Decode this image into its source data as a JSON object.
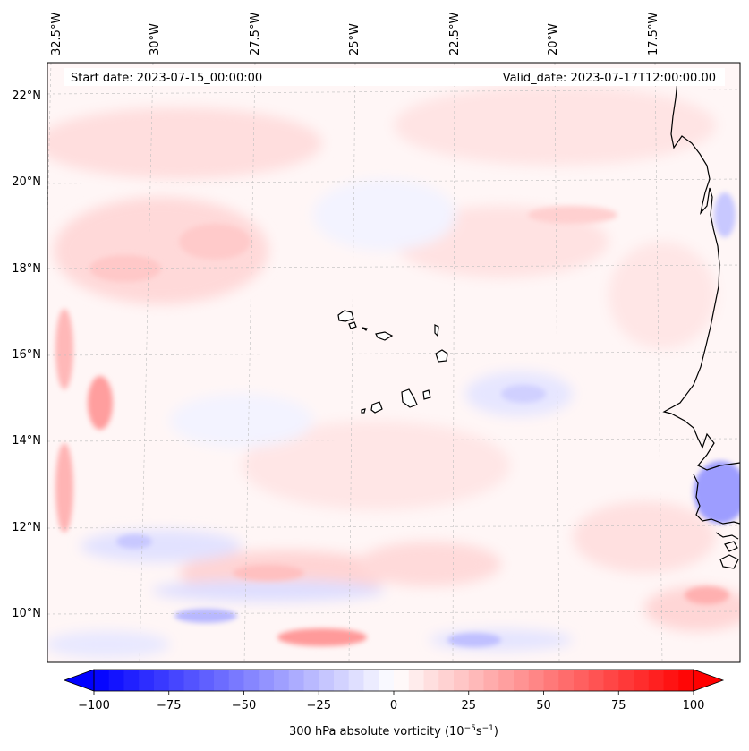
{
  "map": {
    "start_date_label": "Start date: 2023-07-15_00:00:00",
    "valid_date_label": "Valid_date: 2023-07-17T12:00:00.00",
    "lon_labels": [
      "32.5°W",
      "30°W",
      "27.5°W",
      "25°W",
      "22.5°W",
      "20°W",
      "17.5°W"
    ],
    "lat_labels": [
      "22°N",
      "20°N",
      "18°N",
      "16°N",
      "14°N",
      "12°N",
      "10°N"
    ],
    "field_description": "300 hPa absolute vorticity field, mostly weak positive (light pink) with scattered weak negative (light blue) patches; stronger positive band near 14.5°N 32°W and 9.5°N 25°W; negative patch near 13°N 17°W coast",
    "gridlines": true,
    "coastline_color": "#000000"
  },
  "colorbar": {
    "label_main": "300 hPa absolute vorticity (10",
    "label_exp1": "−5",
    "label_mid": "s",
    "label_exp2": "−1",
    "label_end": ")",
    "ticks": [
      "−100",
      "−75",
      "−50",
      "−25",
      "0",
      "25",
      "50",
      "75",
      "100"
    ],
    "min": -100,
    "max": 100,
    "colormap": "bwr",
    "negative_color": "#0000ff",
    "positive_color": "#ff0000",
    "center_color": "#ffffff"
  }
}
